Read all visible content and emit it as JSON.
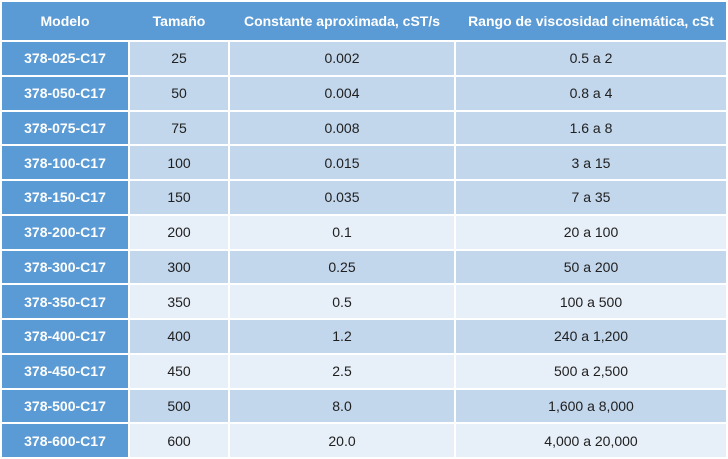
{
  "table": {
    "columns": [
      {
        "key": "modelo",
        "label": "Modelo"
      },
      {
        "key": "tamano",
        "label": "Tamaño"
      },
      {
        "key": "constante",
        "label": "Constante aproximada, cST/s"
      },
      {
        "key": "rango",
        "label": "Rango de viscosidad cinemática, cSt"
      }
    ],
    "rows": [
      {
        "modelo": "378-025-C17",
        "tamano": "25",
        "constante": "0.002",
        "rango": "0.5 a 2"
      },
      {
        "modelo": "378-050-C17",
        "tamano": "50",
        "constante": "0.004",
        "rango": "0.8 a 4"
      },
      {
        "modelo": "378-075-C17",
        "tamano": "75",
        "constante": "0.008",
        "rango": "1.6 a 8"
      },
      {
        "modelo": "378-100-C17",
        "tamano": "100",
        "constante": "0.015",
        "rango": "3 a 15"
      },
      {
        "modelo": "378-150-C17",
        "tamano": "150",
        "constante": "0.035",
        "rango": "7 a 35"
      },
      {
        "modelo": "378-200-C17",
        "tamano": "200",
        "constante": "0.1",
        "rango": "20 a 100"
      },
      {
        "modelo": "378-300-C17",
        "tamano": "300",
        "constante": "0.25",
        "rango": "50 a 200"
      },
      {
        "modelo": "378-350-C17",
        "tamano": "350",
        "constante": "0.5",
        "rango": "100 a 500"
      },
      {
        "modelo": "378-400-C17",
        "tamano": "400",
        "constante": "1.2",
        "rango": "240 a 1,200"
      },
      {
        "modelo": "378-450-C17",
        "tamano": "450",
        "constante": "2.5",
        "rango": "500 a 2,500"
      },
      {
        "modelo": "378-500-C17",
        "tamano": "500",
        "constante": "8.0",
        "rango": "1,600 a 8,000"
      },
      {
        "modelo": "378-600-C17",
        "tamano": "600",
        "constante": "20.0",
        "rango": "4,000 a 20,000"
      }
    ]
  },
  "colors": {
    "header_bg": "#5b9bd5",
    "row_dark": "#c2d6ec",
    "row_light": "#e7eff8",
    "header_text": "#ffffff",
    "body_text": "#202020"
  }
}
